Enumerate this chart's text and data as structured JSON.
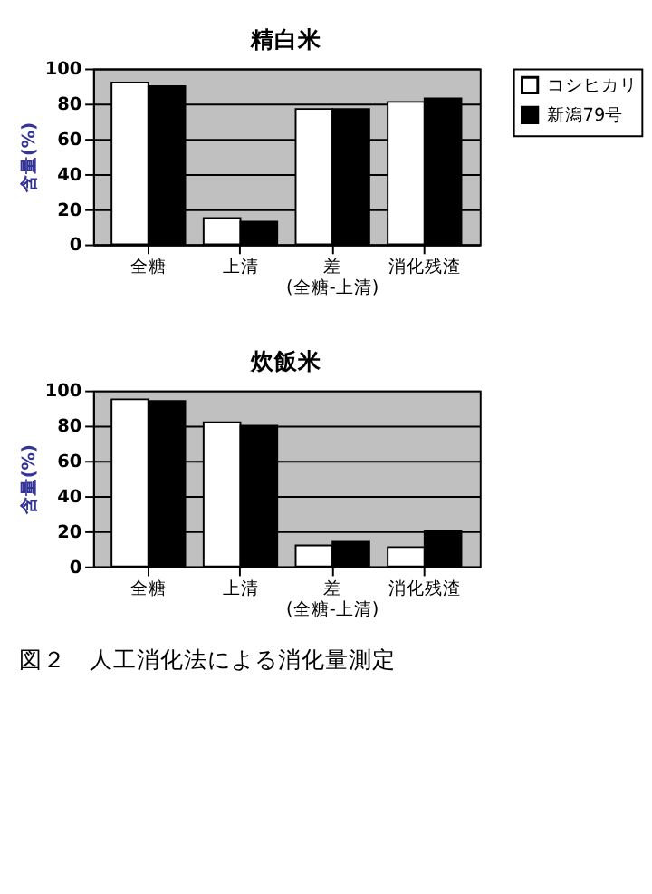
{
  "chart_data": [
    {
      "type": "bar",
      "title": "精白米",
      "ylabel": "含量(%)",
      "categories": [
        "全糖",
        "上清",
        "差\n(全糖-上清)",
        "消化残渣"
      ],
      "series": [
        {
          "name": "コシヒカリ",
          "color": "#ffffff",
          "values": [
            92,
            15,
            77,
            81
          ]
        },
        {
          "name": "新潟79号",
          "color": "#000000",
          "values": [
            90,
            13,
            77,
            83
          ]
        }
      ],
      "ylim": [
        0,
        100
      ],
      "yticks": [
        0,
        20,
        40,
        60,
        80,
        100
      ],
      "grid": "y",
      "legend": "right"
    },
    {
      "type": "bar",
      "title": "炊飯米",
      "ylabel": "含量(%)",
      "categories": [
        "全糖",
        "上清",
        "差\n(全糖-上清)",
        "消化残渣"
      ],
      "series": [
        {
          "name": "コシヒカリ",
          "color": "#ffffff",
          "values": [
            95,
            82,
            12,
            11
          ]
        },
        {
          "name": "新潟79号",
          "color": "#000000",
          "values": [
            94,
            80,
            14,
            20
          ]
        }
      ],
      "ylim": [
        0,
        100
      ],
      "yticks": [
        0,
        20,
        40,
        60,
        80,
        100
      ],
      "grid": "y",
      "legend": "right",
      "annotations": [
        "図２　人工消化法による消化量測定"
      ]
    }
  ]
}
